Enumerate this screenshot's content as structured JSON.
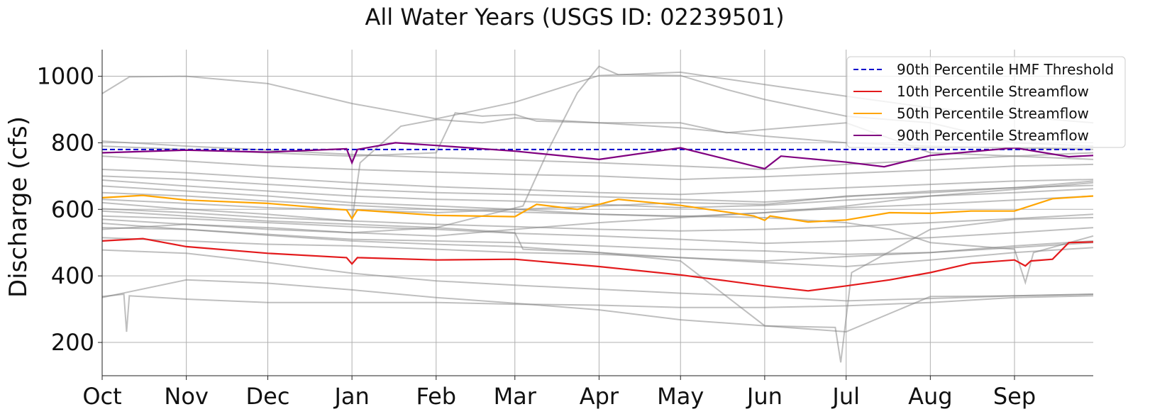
{
  "chart_data": {
    "type": "line",
    "title": "All Water Years (USGS ID: 02239501)",
    "xlabel": "",
    "ylabel": "Discharge (cfs)",
    "ylim": [
      100,
      1080
    ],
    "xlim": [
      0,
      365
    ],
    "yticks": [
      200,
      400,
      600,
      800,
      1000
    ],
    "x_ticks": [
      {
        "label": "Oct",
        "day": 0
      },
      {
        "label": "Nov",
        "day": 31
      },
      {
        "label": "Dec",
        "day": 61
      },
      {
        "label": "Jan",
        "day": 92
      },
      {
        "label": "Feb",
        "day": 123
      },
      {
        "label": "Mar",
        "day": 152
      },
      {
        "label": "Apr",
        "day": 183
      },
      {
        "label": "May",
        "day": 213
      },
      {
        "label": "Jun",
        "day": 244
      },
      {
        "label": "Jul",
        "day": 274
      },
      {
        "label": "Aug",
        "day": 305
      },
      {
        "label": "Sep",
        "day": 336
      }
    ],
    "grid": true,
    "legend_position": "top-right",
    "threshold": {
      "name": "90th Percentile HMF Threshold",
      "value": 780,
      "color": "#0000cc",
      "style": "dashed"
    },
    "series": [
      {
        "name": "10th Percentile Streamflow",
        "color": "#e31a1c",
        "x": [
          0,
          15,
          31,
          61,
          90,
          92,
          94,
          123,
          152,
          183,
          213,
          230,
          244,
          260,
          274,
          290,
          305,
          320,
          336,
          340,
          342,
          350,
          356,
          365
        ],
        "values": [
          505,
          512,
          488,
          468,
          455,
          436,
          455,
          448,
          450,
          428,
          403,
          385,
          370,
          355,
          370,
          388,
          410,
          438,
          448,
          430,
          445,
          450,
          500,
          502
        ]
      },
      {
        "name": "50th Percentile Streamflow",
        "color": "#ffa500",
        "x": [
          0,
          15,
          31,
          61,
          90,
          92,
          94,
          123,
          152,
          160,
          175,
          183,
          190,
          213,
          240,
          244,
          246,
          260,
          274,
          290,
          305,
          320,
          336,
          350,
          365
        ],
        "values": [
          635,
          642,
          628,
          618,
          598,
          572,
          598,
          582,
          578,
          615,
          600,
          615,
          630,
          612,
          580,
          567,
          580,
          562,
          568,
          590,
          588,
          595,
          595,
          632,
          640
        ]
      },
      {
        "name": "90th Percentile Streamflow",
        "color": "#800080",
        "x": [
          0,
          31,
          61,
          90,
          92,
          94,
          108,
          123,
          152,
          183,
          213,
          240,
          244,
          250,
          274,
          288,
          305,
          336,
          356,
          365
        ],
        "values": [
          770,
          778,
          772,
          782,
          740,
          780,
          800,
          792,
          775,
          750,
          785,
          730,
          722,
          760,
          742,
          728,
          762,
          785,
          758,
          762
        ]
      }
    ],
    "background_years": [
      {
        "x": [
          0,
          10,
          31,
          61,
          92,
          123,
          152,
          183,
          213,
          244,
          274,
          305,
          336,
          365
        ],
        "values": [
          948,
          998,
          1000,
          978,
          918,
          872,
          922,
          1002,
          1012,
          975,
          940,
          905,
          880,
          860
        ]
      },
      {
        "x": [
          0,
          31,
          61,
          92,
          123,
          152,
          183,
          213,
          244,
          274,
          305,
          336,
          365
        ],
        "values": [
          335,
          388,
          378,
          358,
          335,
          318,
          298,
          268,
          250,
          232,
          338,
          340,
          345
        ]
      },
      {
        "x": [
          0,
          31,
          61,
          92,
          123,
          152,
          183,
          213,
          244,
          274,
          305,
          336,
          365
        ],
        "values": [
          478,
          468,
          440,
          408,
          385,
          372,
          360,
          348,
          338,
          325,
          332,
          340,
          345
        ]
      },
      {
        "x": [
          0,
          31,
          61,
          92,
          123,
          152,
          183,
          213,
          244,
          274,
          305,
          336,
          365
        ],
        "values": [
          558,
          540,
          522,
          505,
          495,
          488,
          470,
          455,
          440,
          428,
          448,
          470,
          485
        ]
      },
      {
        "x": [
          0,
          31,
          61,
          92,
          123,
          152,
          183,
          213,
          244,
          274,
          305,
          336,
          365
        ],
        "values": [
          580,
          572,
          560,
          548,
          540,
          528,
          520,
          510,
          498,
          505,
          515,
          530,
          545
        ]
      },
      {
        "x": [
          0,
          31,
          61,
          92,
          123,
          152,
          183,
          213,
          244,
          274,
          305,
          336,
          365
        ],
        "values": [
          602,
          590,
          575,
          565,
          555,
          548,
          540,
          535,
          540,
          548,
          560,
          572,
          585
        ]
      },
      {
        "x": [
          0,
          31,
          61,
          92,
          123,
          152,
          183,
          213,
          244,
          274,
          305,
          336,
          365
        ],
        "values": [
          650,
          640,
          625,
          612,
          600,
          592,
          585,
          578,
          590,
          605,
          615,
          628,
          640
        ]
      },
      {
        "x": [
          0,
          31,
          61,
          92,
          123,
          152,
          183,
          213,
          244,
          274,
          305,
          336,
          365
        ],
        "values": [
          688,
          670,
          655,
          640,
          630,
          625,
          615,
          605,
          612,
          628,
          640,
          650,
          662
        ]
      },
      {
        "x": [
          0,
          31,
          61,
          92,
          123,
          152,
          183,
          213,
          244,
          274,
          305,
          336,
          365
        ],
        "values": [
          720,
          710,
          695,
          680,
          668,
          660,
          650,
          645,
          655,
          665,
          675,
          685,
          690
        ]
      },
      {
        "x": [
          0,
          31,
          61,
          92,
          123,
          152,
          183,
          213,
          244,
          274,
          305,
          336,
          365
        ],
        "values": [
          760,
          745,
          730,
          720,
          712,
          705,
          700,
          690,
          698,
          708,
          718,
          730,
          735
        ]
      },
      {
        "x": [
          0,
          31,
          61,
          92,
          123,
          152,
          183,
          213,
          244,
          274,
          305,
          336,
          365
        ],
        "values": [
          805,
          790,
          778,
          765,
          755,
          748,
          740,
          730,
          720,
          735,
          748,
          760,
          770
        ]
      },
      {
        "x": [
          0,
          31,
          61,
          92,
          123,
          152,
          183,
          213,
          244,
          274,
          305,
          336,
          365
        ],
        "values": [
          540,
          555,
          545,
          530,
          520,
          540,
          560,
          575,
          590,
          610,
          640,
          660,
          680
        ]
      },
      {
        "x": [
          0,
          31,
          61,
          92,
          123,
          152,
          183,
          213,
          244,
          274,
          305,
          336,
          365
        ],
        "values": [
          700,
          690,
          675,
          660,
          650,
          645,
          638,
          630,
          622,
          638,
          655,
          665,
          672
        ]
      },
      {
        "x": [
          0,
          31,
          61,
          92,
          123,
          152,
          183,
          213,
          244,
          274,
          305,
          336,
          365
        ],
        "values": [
          515,
          505,
          495,
          490,
          480,
          470,
          465,
          455,
          445,
          458,
          470,
          490,
          505
        ]
      },
      {
        "x": [
          0,
          31,
          61,
          92,
          95,
          110,
          123,
          140,
          152,
          183,
          213,
          230,
          244,
          274,
          305,
          336,
          365
        ],
        "values": [
          620,
          600,
          585,
          565,
          740,
          850,
          870,
          860,
          875,
          860,
          860,
          830,
          840,
          860,
          770,
          760,
          750
        ]
      },
      {
        "x": [
          0,
          31,
          61,
          92,
          123,
          130,
          140,
          152,
          160,
          183,
          213,
          244,
          274,
          305,
          336,
          365
        ],
        "values": [
          790,
          780,
          770,
          760,
          770,
          890,
          880,
          885,
          865,
          860,
          845,
          820,
          800,
          790,
          785,
          780
        ]
      },
      {
        "x": [
          0,
          31,
          61,
          92,
          123,
          140,
          155,
          165,
          175,
          183,
          190,
          213,
          230,
          244,
          274,
          305,
          336,
          365
        ],
        "values": [
          570,
          555,
          540,
          530,
          545,
          580,
          610,
          790,
          950,
          1030,
          1005,
          1002,
          960,
          930,
          880,
          860,
          800,
          790
        ]
      },
      {
        "x": [
          0,
          31,
          61,
          92,
          123,
          152,
          155,
          183,
          213,
          244,
          270,
          272,
          276,
          305,
          336,
          365
        ],
        "values": [
          595,
          580,
          565,
          555,
          545,
          530,
          480,
          470,
          445,
          250,
          245,
          140,
          410,
          540,
          570,
          575
        ]
      },
      {
        "x": [
          0,
          8,
          9,
          10,
          31,
          61,
          92,
          123,
          152,
          183,
          213,
          244,
          274,
          305,
          336,
          365
        ],
        "values": [
          338,
          345,
          232,
          340,
          330,
          320,
          320,
          320,
          315,
          312,
          305,
          305,
          310,
          320,
          335,
          340
        ]
      },
      {
        "x": [
          0,
          31,
          61,
          92,
          123,
          152,
          183,
          213,
          244,
          274,
          290,
          305,
          336,
          340,
          343,
          365
        ],
        "values": [
          670,
          655,
          640,
          620,
          610,
          600,
          585,
          580,
          575,
          560,
          540,
          500,
          480,
          380,
          470,
          520
        ]
      },
      {
        "x": [
          0,
          31,
          61,
          92,
          123,
          152,
          183,
          213,
          244,
          274,
          305,
          336,
          365
        ],
        "values": [
          545,
          540,
          525,
          510,
          505,
          500,
          490,
          480,
          475,
          465,
          470,
          485,
          500
        ]
      },
      {
        "x": [
          0,
          31,
          61,
          92,
          123,
          152,
          183,
          213,
          244,
          274,
          305,
          336,
          365
        ],
        "values": [
          630,
          618,
          605,
          598,
          590,
          600,
          610,
          620,
          615,
          640,
          650,
          665,
          685
        ]
      }
    ]
  }
}
